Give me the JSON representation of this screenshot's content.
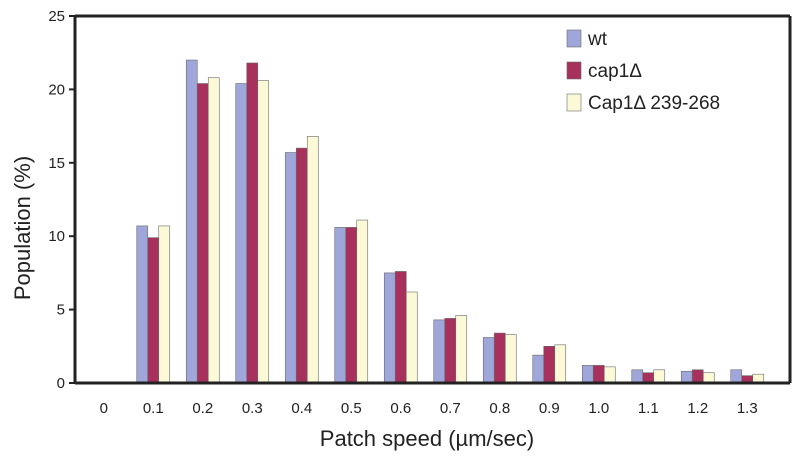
{
  "chart_data": {
    "type": "bar",
    "title": "",
    "xlabel": "Patch speed (µm/sec)",
    "ylabel": "Population (%)",
    "ylim": [
      0,
      25
    ],
    "yticks": [
      "0",
      "5",
      "10",
      "15",
      "20",
      "25"
    ],
    "categories": [
      "0",
      "0.1",
      "0.2",
      "0.3",
      "0.4",
      "0.5",
      "0.6",
      "0.7",
      "0.8",
      "0.9",
      "1.0",
      "1.1",
      "1.2",
      "1.3"
    ],
    "series": [
      {
        "name": "wt",
        "color": "#9fa6d9",
        "values": [
          null,
          10.7,
          22.0,
          20.4,
          15.7,
          10.6,
          7.5,
          4.3,
          3.1,
          1.9,
          1.2,
          0.9,
          0.8,
          0.9
        ]
      },
      {
        "name": "cap1Δ",
        "color": "#a7305d",
        "values": [
          null,
          9.9,
          20.4,
          21.8,
          16.0,
          10.6,
          7.6,
          4.4,
          3.4,
          2.5,
          1.2,
          0.7,
          0.9,
          0.5
        ]
      },
      {
        "name": "Cap1Δ 239-268",
        "color": "#fbf9d6",
        "values": [
          null,
          10.7,
          20.8,
          20.6,
          16.8,
          11.1,
          6.2,
          4.6,
          3.3,
          2.6,
          1.1,
          0.9,
          0.7,
          0.6
        ]
      }
    ],
    "legend_position": "top-right",
    "grid": false
  }
}
